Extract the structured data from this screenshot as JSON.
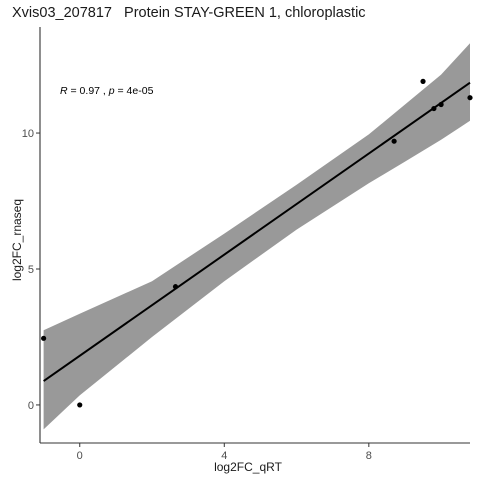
{
  "chart_data": {
    "type": "scatter",
    "title": "Xvis03_207817   Protein STAY-GREEN 1, chloroplastic",
    "xlabel": "log2FC_qRT",
    "ylabel": "log2FC_rnaseq",
    "xlim": [
      -1.1,
      10.8
    ],
    "ylim": [
      -1.4,
      13.9
    ],
    "xticks": [
      0,
      4,
      8
    ],
    "yticks": [
      0,
      5,
      10
    ],
    "points": [
      {
        "x": -1.0,
        "y": 2.45
      },
      {
        "x": 0.0,
        "y": 0.0
      },
      {
        "x": 2.65,
        "y": 4.35
      },
      {
        "x": 8.7,
        "y": 9.7
      },
      {
        "x": 9.5,
        "y": 11.9
      },
      {
        "x": 9.8,
        "y": 10.9
      },
      {
        "x": 10.0,
        "y": 11.05
      },
      {
        "x": 10.8,
        "y": 11.3
      }
    ],
    "fit_line": {
      "x": [
        -1.0,
        10.8
      ],
      "y": [
        0.88,
        11.85
      ]
    },
    "confidence_band": {
      "x": [
        -1.0,
        0.0,
        2.0,
        4.0,
        6.0,
        8.0,
        9.0,
        10.0,
        10.8
      ],
      "lower": [
        -0.9,
        0.35,
        2.5,
        4.55,
        6.45,
        8.15,
        8.95,
        9.75,
        10.45
      ],
      "upper": [
        2.75,
        3.35,
        4.55,
        6.3,
        8.1,
        9.95,
        11.05,
        12.15,
        13.3
      ]
    },
    "annotation": {
      "r_label": "R",
      "r_value": " = 0.97 , ",
      "p_label": "p",
      "p_value": " = 4e-05"
    },
    "colors": {
      "band": "#999999",
      "line": "#000000",
      "points": "#000000",
      "axis": "#333333"
    },
    "grid": false
  }
}
